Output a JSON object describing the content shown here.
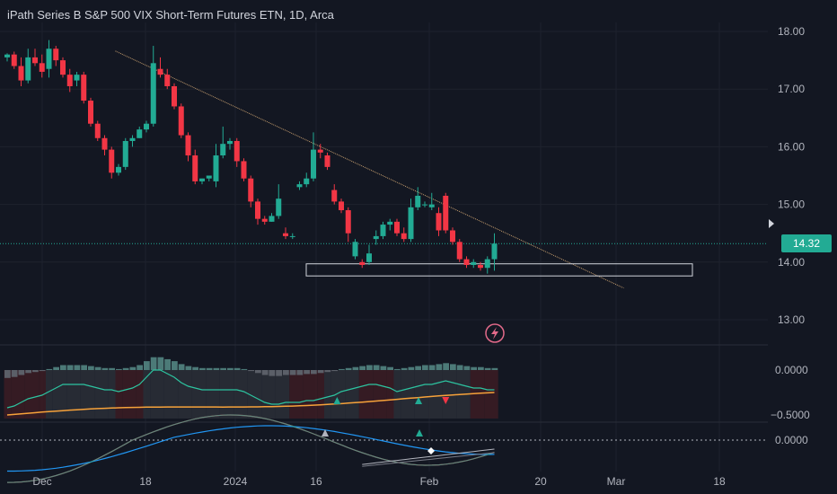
{
  "header": {
    "title": "iPath Series B S&P 500 VIX Short-Term Futures ETN, 1D, Arca"
  },
  "last_price": "14.32",
  "colors": {
    "bg": "#131722",
    "up": "#22ab94",
    "down": "#f23645",
    "grid": "#1e222d",
    "text": "#b2b5be"
  },
  "chart_data": {
    "type": "candlestick",
    "price_axis": {
      "ticks": [
        18.0,
        17.0,
        16.0,
        15.0,
        14.0,
        13.0
      ],
      "labels": [
        "18.00",
        "17.00",
        "16.00",
        "15.00",
        "14.00",
        "13.00"
      ]
    },
    "x_axis": {
      "labels": [
        "Dec",
        "18",
        "2024",
        "16",
        "Feb",
        "20",
        "Mar",
        "18"
      ]
    },
    "ohlc": [
      [
        17.55,
        17.62,
        17.48,
        17.6
      ],
      [
        17.6,
        17.65,
        17.35,
        17.4
      ],
      [
        17.4,
        17.55,
        17.05,
        17.15
      ],
      [
        17.15,
        17.7,
        17.1,
        17.55
      ],
      [
        17.55,
        17.7,
        17.4,
        17.45
      ],
      [
        17.45,
        17.6,
        17.2,
        17.3
      ],
      [
        17.35,
        17.85,
        17.2,
        17.7
      ],
      [
        17.7,
        17.75,
        17.4,
        17.5
      ],
      [
        17.5,
        17.55,
        17.2,
        17.25
      ],
      [
        17.25,
        17.35,
        16.95,
        17.05
      ],
      [
        17.15,
        17.3,
        17.05,
        17.25
      ],
      [
        17.25,
        17.3,
        16.75,
        16.8
      ],
      [
        16.8,
        16.85,
        16.35,
        16.4
      ],
      [
        16.4,
        16.45,
        16.1,
        16.15
      ],
      [
        16.15,
        16.2,
        15.85,
        15.95
      ],
      [
        15.95,
        16.0,
        15.45,
        15.55
      ],
      [
        15.55,
        15.7,
        15.5,
        15.65
      ],
      [
        15.65,
        16.15,
        15.6,
        16.1
      ],
      [
        16.1,
        16.2,
        16.0,
        16.15
      ],
      [
        16.15,
        16.35,
        16.15,
        16.3
      ],
      [
        16.3,
        16.45,
        16.25,
        16.4
      ],
      [
        16.4,
        17.75,
        16.35,
        17.45
      ],
      [
        17.35,
        17.55,
        17.2,
        17.25
      ],
      [
        17.25,
        17.35,
        17.0,
        17.05
      ],
      [
        17.05,
        17.1,
        16.65,
        16.7
      ],
      [
        16.7,
        16.75,
        16.15,
        16.2
      ],
      [
        16.2,
        16.25,
        15.75,
        15.85
      ],
      [
        15.85,
        15.95,
        15.35,
        15.4
      ],
      [
        15.4,
        15.45,
        15.35,
        15.45
      ],
      [
        15.45,
        15.5,
        15.4,
        15.5
      ],
      [
        15.4,
        16.05,
        15.3,
        15.85
      ],
      [
        15.85,
        16.35,
        15.8,
        16.05
      ],
      [
        16.05,
        16.15,
        15.95,
        16.1
      ],
      [
        16.1,
        16.15,
        15.65,
        15.75
      ],
      [
        15.75,
        15.8,
        15.4,
        15.45
      ],
      [
        15.45,
        15.5,
        14.95,
        15.05
      ],
      [
        15.05,
        15.1,
        14.65,
        14.75
      ],
      [
        14.75,
        14.8,
        14.65,
        14.7
      ],
      [
        14.7,
        14.85,
        14.7,
        14.8
      ],
      [
        14.8,
        15.35,
        14.75,
        15.1
      ],
      [
        14.5,
        14.6,
        14.4,
        14.45
      ],
      [
        14.45,
        14.5,
        14.4,
        14.45
      ],
      [
        15.3,
        15.4,
        15.25,
        15.35
      ],
      [
        15.35,
        15.55,
        15.3,
        15.45
      ],
      [
        15.45,
        16.25,
        15.4,
        15.95
      ],
      [
        15.95,
        16.05,
        15.8,
        15.9
      ],
      [
        15.85,
        15.9,
        15.6,
        15.65
      ],
      [
        15.25,
        15.35,
        15.0,
        15.05
      ],
      [
        15.05,
        15.1,
        14.85,
        14.9
      ],
      [
        14.9,
        14.95,
        14.35,
        14.5
      ],
      [
        14.1,
        14.4,
        14.05,
        14.35
      ],
      [
        14.0,
        14.05,
        13.9,
        13.95
      ],
      [
        14.0,
        14.3,
        13.95,
        14.15
      ],
      [
        14.4,
        14.55,
        14.3,
        14.45
      ],
      [
        14.45,
        14.7,
        14.4,
        14.65
      ],
      [
        14.65,
        14.75,
        14.55,
        14.7
      ],
      [
        14.7,
        14.75,
        14.45,
        14.5
      ],
      [
        14.5,
        14.6,
        14.35,
        14.4
      ],
      [
        14.4,
        15.1,
        14.35,
        14.95
      ],
      [
        14.95,
        15.3,
        14.9,
        15.15
      ],
      [
        15.0,
        15.05,
        14.95,
        15.0
      ],
      [
        14.95,
        15.2,
        14.9,
        15.0
      ],
      [
        14.85,
        14.95,
        14.45,
        14.55
      ],
      [
        15.15,
        15.2,
        14.5,
        14.55
      ],
      [
        14.55,
        14.6,
        14.3,
        14.35
      ],
      [
        14.35,
        14.4,
        14.0,
        14.05
      ],
      [
        14.05,
        14.1,
        13.9,
        13.95
      ],
      [
        13.95,
        14.05,
        13.9,
        14.0
      ],
      [
        13.95,
        14.0,
        13.85,
        13.9
      ],
      [
        13.9,
        14.1,
        13.8,
        14.05
      ],
      [
        14.05,
        14.5,
        13.85,
        14.32
      ]
    ],
    "trendline": {
      "from": [
        14,
        17.66
      ],
      "to": [
        54,
        13.55
      ]
    },
    "support_box": {
      "low": 13.76,
      "high": 13.97,
      "x_from": 26.4,
      "x_to": 60.5
    },
    "osc1": {
      "axis_labels": [
        "0.0000",
        "−0.5000"
      ],
      "histogram": [
        -0.08,
        -0.07,
        -0.05,
        -0.03,
        -0.02,
        -0.01,
        0.01,
        0.03,
        0.05,
        0.05,
        0.05,
        0.05,
        0.04,
        0.03,
        0.02,
        0.02,
        0.01,
        0.02,
        0.03,
        0.05,
        0.09,
        0.13,
        0.13,
        0.11,
        0.09,
        0.06,
        0.04,
        0.03,
        0.02,
        0.02,
        0.02,
        0.02,
        0.02,
        0.02,
        0.01,
        -0.01,
        -0.03,
        -0.05,
        -0.06,
        -0.06,
        -0.05,
        -0.05,
        -0.05,
        -0.04,
        -0.04,
        -0.03,
        -0.02,
        -0.01,
        0.01,
        0.02,
        0.03,
        0.04,
        0.05,
        0.05,
        0.04,
        0.03,
        0.01,
        0.02,
        0.03,
        0.04,
        0.05,
        0.05,
        0.06,
        0.07,
        0.06,
        0.05,
        0.04,
        0.03,
        0.03,
        0.02,
        0.02
      ],
      "signal_markers": [
        {
          "i": 28,
          "dir": "up"
        },
        {
          "i": 37,
          "dir": "up"
        },
        {
          "i": 40,
          "dir": "down"
        }
      ]
    },
    "osc2": {
      "axis_labels": [
        "0.0000"
      ]
    }
  }
}
